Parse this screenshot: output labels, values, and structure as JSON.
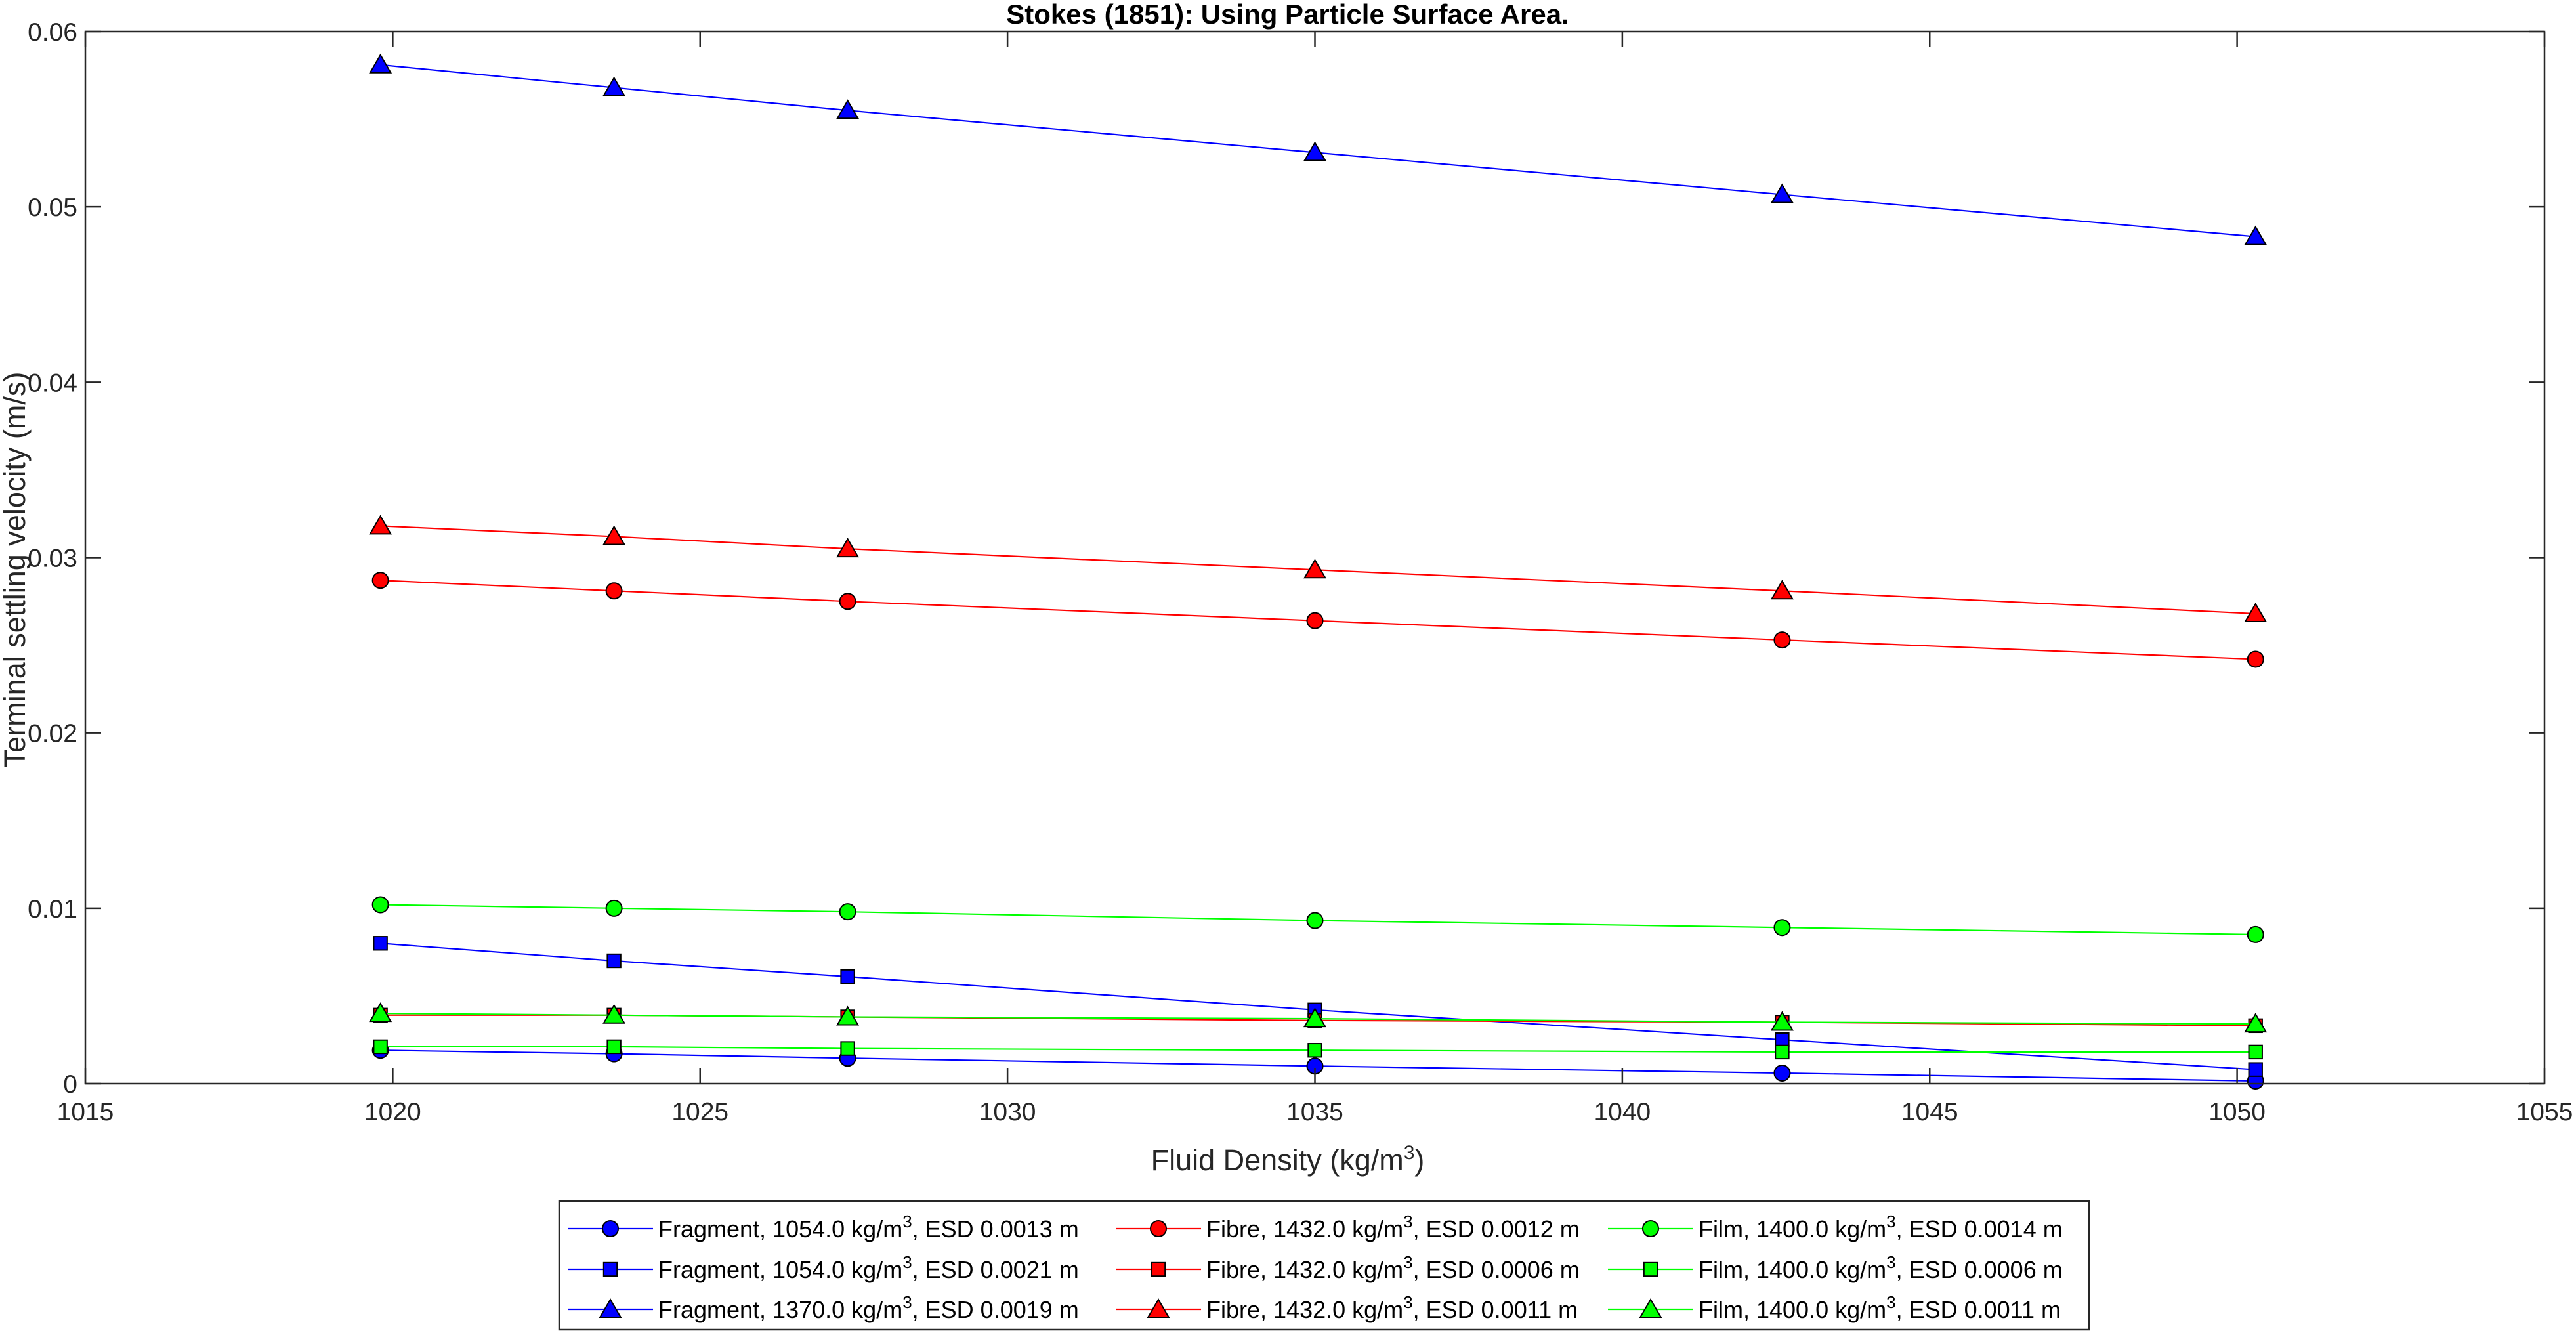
{
  "chart_data": {
    "type": "line",
    "title": "Stokes (1851): Using Particle Surface Area.",
    "xlabel": "Fluid Density (kg/m",
    "xlabel_sup": "3",
    "xlabel_end": ")",
    "ylabel": "Terminal settling velocity (m/s)",
    "xlim": [
      1015,
      1055
    ],
    "ylim": [
      0,
      0.06
    ],
    "xticks": [
      1015,
      1020,
      1025,
      1030,
      1035,
      1040,
      1045,
      1050,
      1055
    ],
    "yticks": [
      0,
      0.01,
      0.02,
      0.03,
      0.04,
      0.05,
      0.06
    ],
    "xtick_labels": [
      "1015",
      "1020",
      "1025",
      "1030",
      "1035",
      "1040",
      "1045",
      "1050",
      "1055"
    ],
    "ytick_labels": [
      "0",
      "0.01",
      "0.02",
      "0.03",
      "0.04",
      "0.05",
      "0.06"
    ],
    "grid": false,
    "legend_position": "bottom",
    "x": [
      1019.8,
      1023.6,
      1027.4,
      1035.0,
      1042.6,
      1050.3
    ],
    "series": [
      {
        "name": "Fragment, 1054.0 kg/m",
        "sup": "3",
        "suffix": ", ESD 0.0013 m",
        "color": "#0000ff",
        "marker": "circle",
        "values": [
          0.0019,
          0.0017,
          0.00145,
          0.001,
          0.0006,
          0.00015
        ]
      },
      {
        "name": "Fragment, 1054.0 kg/m",
        "sup": "3",
        "suffix": ", ESD 0.0021 m",
        "color": "#0000ff",
        "marker": "square",
        "values": [
          0.008,
          0.007,
          0.0061,
          0.0042,
          0.0025,
          0.0008
        ]
      },
      {
        "name": "Fragment, 1370.0 kg/m",
        "sup": "3",
        "suffix": ", ESD 0.0019 m",
        "color": "#0000ff",
        "marker": "triangle",
        "values": [
          0.0581,
          0.0568,
          0.0555,
          0.0531,
          0.0507,
          0.0483
        ]
      },
      {
        "name": "Fibre, 1432.0 kg/m",
        "sup": "3",
        "suffix": ", ESD 0.0012 m",
        "color": "#ff0000",
        "marker": "circle",
        "values": [
          0.0287,
          0.0281,
          0.0275,
          0.0264,
          0.0253,
          0.0242
        ]
      },
      {
        "name": "Fibre, 1432.0 kg/m",
        "sup": "3",
        "suffix": ", ESD 0.0006 m",
        "color": "#ff0000",
        "marker": "square",
        "values": [
          0.0039,
          0.0039,
          0.0038,
          0.0036,
          0.0035,
          0.0033
        ]
      },
      {
        "name": "Fibre, 1432.0 kg/m",
        "sup": "3",
        "suffix": ", ESD 0.0011 m",
        "color": "#ff0000",
        "marker": "triangle",
        "values": [
          0.0318,
          0.0312,
          0.0305,
          0.0293,
          0.0281,
          0.0268
        ]
      },
      {
        "name": "Film, 1400.0 kg/m",
        "sup": "3",
        "suffix": ", ESD 0.0014 m",
        "color": "#00ff00",
        "marker": "circle",
        "values": [
          0.0102,
          0.01,
          0.0098,
          0.0093,
          0.0089,
          0.0085
        ]
      },
      {
        "name": "Film, 1400.0 kg/m",
        "sup": "3",
        "suffix": ", ESD 0.0006 m",
        "color": "#00ff00",
        "marker": "square",
        "values": [
          0.0021,
          0.0021,
          0.002,
          0.0019,
          0.0018,
          0.0018
        ]
      },
      {
        "name": "Film, 1400.0 kg/m",
        "sup": "3",
        "suffix": ", ESD 0.0011 m",
        "color": "#00ff00",
        "marker": "triangle",
        "values": [
          0.004,
          0.0039,
          0.0038,
          0.0037,
          0.0035,
          0.0034
        ]
      }
    ]
  }
}
